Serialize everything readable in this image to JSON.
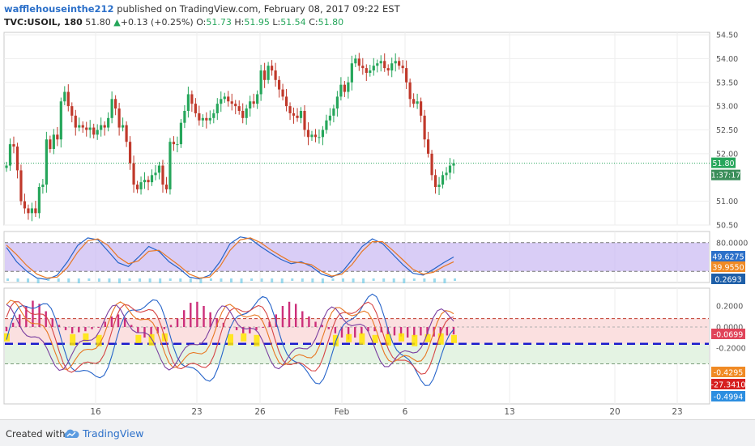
{
  "header": {
    "author": "wafflehouseinthe212",
    "published": "published on TradingView.com, February 08, 2017 09:22 EST",
    "symbol": "TVC:USOIL, 180",
    "last": "51.80",
    "change_arrow": "▲",
    "change": "+0.13 (+0.25%)",
    "o_label": "O:",
    "o_value": "51.73",
    "h_label": "H:",
    "h_value": "51.95",
    "l_label": "L:",
    "l_value": "51.54",
    "c_label": "C:",
    "c_value": "51.80"
  },
  "footer": {
    "created_with": "Created with",
    "brand": "TradingView"
  },
  "colors": {
    "bull": "#26a65b",
    "bear": "#c0392b",
    "stoch_band": "#c9b8f2",
    "green_zone": "#e4f3e3",
    "red_zone": "#fbe0e0",
    "blue_line": "#1a1acc",
    "histogram": "#cc2f7a",
    "yellow": "#ffe600"
  },
  "chart_data": [
    {
      "type": "candlestick",
      "title": "TVC:USOIL, 180",
      "x_tick_labels": [
        "16",
        "23",
        "26",
        "Feb",
        "6",
        "13",
        "20",
        "23"
      ],
      "y_ticks": [
        "54.50",
        "54.00",
        "53.50",
        "53.00",
        "52.50",
        "52.00",
        "51.00",
        "50.50"
      ],
      "ylim": [
        50.5,
        54.5
      ],
      "last_price_label": "51.80",
      "countdown_label": "1:37:17",
      "last_price": 51.8,
      "closes": [
        51.75,
        52.2,
        52.15,
        51.65,
        51.0,
        50.85,
        50.75,
        50.85,
        50.75,
        51.3,
        51.35,
        52.3,
        52.1,
        52.4,
        52.3,
        53.1,
        53.3,
        53.0,
        52.8,
        52.55,
        52.6,
        52.55,
        52.5,
        52.55,
        52.4,
        52.5,
        52.6,
        52.55,
        52.75,
        53.15,
        52.95,
        52.55,
        52.6,
        52.25,
        51.8,
        51.35,
        51.25,
        51.4,
        51.45,
        51.4,
        51.55,
        51.6,
        51.75,
        51.35,
        51.25,
        52.25,
        52.2,
        52.2,
        52.65,
        52.9,
        53.25,
        53.05,
        52.85,
        52.7,
        52.75,
        52.7,
        52.75,
        52.85,
        53.05,
        53.15,
        53.2,
        53.1,
        53.05,
        53.0,
        52.9,
        52.75,
        52.95,
        53.1,
        53.05,
        53.25,
        53.75,
        53.55,
        53.85,
        53.75,
        53.55,
        53.35,
        53.2,
        53.0,
        52.85,
        52.8,
        52.75,
        52.9,
        52.5,
        52.35,
        52.4,
        52.35,
        52.35,
        52.5,
        52.7,
        52.8,
        52.95,
        53.2,
        53.45,
        53.3,
        53.5,
        53.9,
        54.0,
        53.85,
        53.8,
        53.7,
        53.75,
        53.85,
        53.9,
        53.95,
        53.8,
        53.75,
        53.9,
        53.95,
        53.85,
        53.8,
        53.5,
        53.15,
        53.05,
        53.1,
        52.8,
        52.3,
        52.0,
        51.55,
        51.3,
        51.35,
        51.55,
        51.6,
        51.75,
        51.8
      ]
    },
    {
      "type": "line",
      "title": "Stochastic RSI",
      "y_ticks": [
        "80.0000"
      ],
      "band": [
        20,
        80
      ],
      "value_labels": [
        "49.6275",
        "39.9550",
        "0.2693"
      ],
      "series": [
        {
          "values": [
            70,
            40,
            20,
            6,
            3,
            12,
            40,
            74,
            90,
            86,
            62,
            38,
            30,
            50,
            72,
            62,
            40,
            26,
            8,
            4,
            12,
            40,
            78,
            92,
            88,
            72,
            58,
            45,
            36,
            40,
            30,
            14,
            8,
            18,
            44,
            72,
            88,
            78,
            56,
            34,
            16,
            12,
            24,
            38,
            50
          ]
        },
        {
          "values": [
            75,
            55,
            32,
            14,
            6,
            8,
            28,
            60,
            84,
            88,
            74,
            50,
            36,
            42,
            62,
            64,
            48,
            32,
            14,
            6,
            8,
            30,
            64,
            86,
            90,
            80,
            65,
            52,
            40,
            38,
            34,
            20,
            10,
            14,
            34,
            62,
            82,
            82,
            64,
            44,
            24,
            14,
            18,
            30,
            40
          ]
        }
      ]
    },
    {
      "type": "line",
      "title": "Oscillator",
      "y_ticks": [
        "0.2000",
        "0.0000",
        "-0.2000"
      ],
      "value_labels": [
        "-0.0699",
        "-0.4295",
        "-27.3410",
        "-0.4994"
      ],
      "histogram_values": [
        -0.04,
        0.04,
        0.12,
        0.2,
        0.25,
        0.22,
        0.15,
        0.08,
        0.02,
        -0.03,
        -0.06,
        -0.05,
        -0.04,
        -0.02,
        0.0,
        0.05,
        0.1,
        0.12,
        0.08,
        0.02,
        -0.05,
        -0.1,
        -0.1,
        -0.06,
        -0.02,
        0.02,
        0.08,
        0.16,
        0.23,
        0.24,
        0.2,
        0.14,
        0.08,
        0.04,
        0.0,
        -0.03,
        -0.06,
        -0.06,
        -0.03,
        0.0,
        0.05,
        0.12,
        0.2,
        0.24,
        0.22,
        0.15,
        0.1,
        0.05,
        0.02,
        -0.02,
        -0.06,
        -0.1,
        -0.12,
        -0.1,
        -0.07,
        -0.04,
        -0.04,
        -0.05,
        -0.07,
        -0.08,
        -0.09,
        -0.1,
        -0.09,
        -0.08,
        -0.08,
        -0.09,
        -0.09,
        -0.08,
        -0.07
      ]
    }
  ]
}
